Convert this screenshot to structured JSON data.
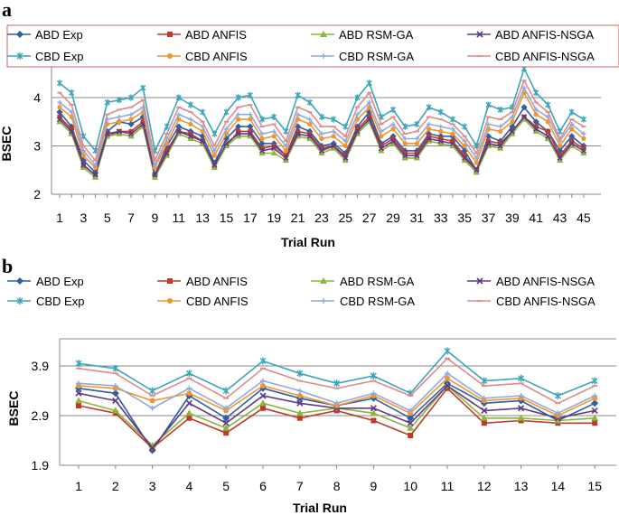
{
  "figure": {
    "panel_a_letter": "a",
    "panel_b_letter": "b"
  },
  "chart_data": [
    {
      "type": "line",
      "panel": "a",
      "xlabel": "Trial Run",
      "ylabel": "BSEC",
      "ylim": [
        2,
        5
      ],
      "yticks": [
        "2",
        "3",
        "4"
      ],
      "xticks": [
        "1",
        "3",
        "5",
        "7",
        "9",
        "11",
        "13",
        "15",
        "17",
        "19",
        "21",
        "23",
        "25",
        "27",
        "29",
        "31",
        "33",
        "35",
        "37",
        "39",
        "41",
        "43",
        "45"
      ],
      "grid": "horizontal",
      "legend": "top, boxed, 4 columns",
      "x": [
        1,
        2,
        3,
        4,
        5,
        6,
        7,
        8,
        9,
        10,
        11,
        12,
        13,
        14,
        15,
        16,
        17,
        18,
        19,
        20,
        21,
        22,
        23,
        24,
        25,
        26,
        27,
        28,
        29,
        30,
        31,
        32,
        33,
        34,
        35,
        36,
        37,
        38,
        39,
        40,
        41,
        42,
        43,
        44,
        45
      ],
      "series": [
        {
          "name": "ABD Exp",
          "color": "#2E5EA8",
          "marker": "diamond",
          "values": [
            3.7,
            3.4,
            2.7,
            2.45,
            3.3,
            3.5,
            3.45,
            3.6,
            2.4,
            3.0,
            3.4,
            3.3,
            3.2,
            2.65,
            3.15,
            3.4,
            3.4,
            3.05,
            3.05,
            2.8,
            3.4,
            3.3,
            3.0,
            3.05,
            2.85,
            3.4,
            3.7,
            3.05,
            3.2,
            2.9,
            2.9,
            3.25,
            3.2,
            3.2,
            2.9,
            2.5,
            3.2,
            3.1,
            3.4,
            3.8,
            3.5,
            3.3,
            2.9,
            3.2,
            3.0
          ]
        },
        {
          "name": "ABD ANFIS",
          "color": "#C0392B",
          "marker": "square",
          "values": [
            3.6,
            3.35,
            2.6,
            2.4,
            3.2,
            3.3,
            3.3,
            3.5,
            2.4,
            2.9,
            3.3,
            3.25,
            3.1,
            2.6,
            3.0,
            3.3,
            3.3,
            2.95,
            3.0,
            2.8,
            3.3,
            3.25,
            2.95,
            3.0,
            2.8,
            3.35,
            3.6,
            3.0,
            3.15,
            2.85,
            2.85,
            3.2,
            3.15,
            3.1,
            2.8,
            2.5,
            3.1,
            3.05,
            3.3,
            3.6,
            3.4,
            3.3,
            2.8,
            3.1,
            2.95
          ]
        },
        {
          "name": "ABD RSM-GA",
          "color": "#8DB53C",
          "marker": "triangle",
          "values": [
            3.5,
            3.25,
            2.55,
            2.35,
            3.2,
            3.25,
            3.2,
            3.4,
            2.35,
            2.8,
            3.25,
            3.15,
            3.05,
            2.55,
            3.0,
            3.2,
            3.2,
            2.85,
            2.85,
            2.7,
            3.2,
            3.15,
            2.85,
            2.95,
            2.7,
            3.25,
            3.5,
            2.9,
            3.05,
            2.75,
            2.75,
            3.1,
            3.05,
            3.0,
            2.7,
            2.45,
            3.0,
            2.95,
            3.25,
            3.55,
            3.3,
            3.15,
            2.7,
            3.0,
            2.85
          ]
        },
        {
          "name": "ABD ANFIS-NSGA",
          "color": "#5E3A87",
          "marker": "x",
          "values": [
            3.55,
            3.3,
            2.6,
            2.4,
            3.25,
            3.3,
            3.25,
            3.45,
            2.4,
            2.85,
            3.3,
            3.2,
            3.1,
            2.6,
            3.05,
            3.25,
            3.25,
            2.9,
            2.95,
            2.75,
            3.25,
            3.2,
            2.9,
            3.0,
            2.75,
            3.3,
            3.55,
            2.95,
            3.1,
            2.8,
            2.8,
            3.15,
            3.1,
            3.05,
            2.75,
            2.5,
            3.05,
            3.0,
            3.3,
            3.6,
            3.35,
            3.2,
            2.75,
            3.05,
            2.9
          ]
        },
        {
          "name": "CBD Exp",
          "color": "#3AA6B9",
          "marker": "star",
          "values": [
            4.3,
            4.1,
            3.2,
            2.9,
            3.9,
            3.95,
            4.0,
            4.2,
            2.9,
            3.4,
            4.0,
            3.85,
            3.7,
            3.25,
            3.7,
            4.0,
            4.05,
            3.55,
            3.6,
            3.3,
            4.05,
            3.9,
            3.6,
            3.55,
            3.4,
            4.0,
            4.3,
            3.6,
            3.75,
            3.4,
            3.45,
            3.8,
            3.7,
            3.55,
            3.4,
            3.0,
            3.85,
            3.75,
            3.8,
            4.6,
            4.1,
            3.85,
            3.3,
            3.7,
            3.55
          ]
        },
        {
          "name": "CBD ANFIS",
          "color": "#F0962E",
          "marker": "circle",
          "values": [
            3.8,
            3.6,
            2.8,
            2.55,
            3.45,
            3.5,
            3.55,
            3.7,
            2.55,
            3.05,
            3.55,
            3.45,
            3.3,
            2.8,
            3.25,
            3.55,
            3.55,
            3.15,
            3.2,
            2.9,
            3.55,
            3.45,
            3.15,
            3.2,
            3.0,
            3.55,
            3.8,
            3.2,
            3.35,
            3.05,
            3.05,
            3.35,
            3.3,
            3.25,
            3.0,
            2.65,
            3.35,
            3.3,
            3.5,
            4.1,
            3.65,
            3.5,
            3.0,
            3.35,
            3.15
          ]
        },
        {
          "name": "CBD RSM-GA",
          "color": "#8FAADC",
          "marker": "plus",
          "values": [
            3.9,
            3.7,
            2.9,
            2.6,
            3.55,
            3.6,
            3.65,
            3.8,
            2.6,
            3.15,
            3.65,
            3.55,
            3.4,
            2.9,
            3.35,
            3.65,
            3.65,
            3.25,
            3.3,
            3.0,
            3.65,
            3.55,
            3.25,
            3.3,
            3.1,
            3.65,
            3.9,
            3.3,
            3.45,
            3.15,
            3.15,
            3.45,
            3.4,
            3.35,
            3.1,
            2.75,
            3.45,
            3.4,
            3.6,
            4.2,
            3.75,
            3.6,
            3.1,
            3.45,
            3.25
          ]
        },
        {
          "name": "CBD ANFIS-NSGA",
          "color": "#E08A8A",
          "marker": "dash",
          "values": [
            4.1,
            3.85,
            3.0,
            2.7,
            3.65,
            3.75,
            3.8,
            3.95,
            2.7,
            3.25,
            3.8,
            3.7,
            3.5,
            3.0,
            3.5,
            3.8,
            3.85,
            3.4,
            3.45,
            3.1,
            3.8,
            3.7,
            3.4,
            3.4,
            3.2,
            3.8,
            4.1,
            3.45,
            3.6,
            3.25,
            3.3,
            3.6,
            3.55,
            3.45,
            3.2,
            2.85,
            3.6,
            3.55,
            3.7,
            4.35,
            3.9,
            3.7,
            3.15,
            3.55,
            3.4
          ]
        }
      ]
    },
    {
      "type": "line",
      "panel": "b",
      "xlabel": "Trial Run",
      "ylabel": "BSEC",
      "ylim": [
        1.9,
        4.4
      ],
      "yticks": [
        "1.9",
        "2.9",
        "3.9"
      ],
      "xticks": [
        "1",
        "2",
        "3",
        "4",
        "5",
        "6",
        "7",
        "8",
        "9",
        "10",
        "11",
        "12",
        "13",
        "14",
        "15"
      ],
      "grid": "horizontal",
      "legend": "top, 4 columns",
      "x": [
        1,
        2,
        3,
        4,
        5,
        6,
        7,
        8,
        9,
        10,
        11,
        12,
        13,
        14,
        15
      ],
      "series": [
        {
          "name": "ABD Exp",
          "color": "#2E5EA8",
          "marker": "diamond",
          "values": [
            3.45,
            3.35,
            2.2,
            3.3,
            2.85,
            3.45,
            3.25,
            3.1,
            3.25,
            2.85,
            3.55,
            3.15,
            3.2,
            2.8,
            3.15
          ]
        },
        {
          "name": "ABD ANFIS",
          "color": "#C0392B",
          "marker": "square",
          "values": [
            3.1,
            2.95,
            2.25,
            2.85,
            2.55,
            3.05,
            2.85,
            3.0,
            2.8,
            2.5,
            3.45,
            2.75,
            2.8,
            2.75,
            2.75
          ]
        },
        {
          "name": "ABD RSM-GA",
          "color": "#8DB53C",
          "marker": "triangle",
          "values": [
            3.2,
            3.0,
            2.3,
            2.95,
            2.65,
            3.15,
            2.95,
            3.05,
            2.95,
            2.65,
            3.5,
            2.85,
            2.85,
            2.8,
            2.85
          ]
        },
        {
          "name": "ABD ANFIS-NSGA",
          "color": "#5E3A87",
          "marker": "x",
          "values": [
            3.35,
            3.2,
            2.25,
            3.15,
            2.75,
            3.3,
            3.15,
            3.05,
            3.05,
            2.75,
            3.5,
            3.0,
            3.05,
            2.85,
            3.0
          ]
        },
        {
          "name": "CBD Exp",
          "color": "#3AA6B9",
          "marker": "star",
          "values": [
            3.95,
            3.85,
            3.4,
            3.75,
            3.4,
            4.0,
            3.75,
            3.55,
            3.7,
            3.35,
            4.2,
            3.6,
            3.65,
            3.3,
            3.6
          ]
        },
        {
          "name": "CBD ANFIS",
          "color": "#F0962E",
          "marker": "circle",
          "values": [
            3.5,
            3.45,
            3.2,
            3.35,
            3.0,
            3.5,
            3.3,
            3.1,
            3.3,
            2.95,
            3.65,
            3.2,
            3.25,
            2.9,
            3.25
          ]
        },
        {
          "name": "CBD RSM-GA",
          "color": "#8FAADC",
          "marker": "plus",
          "values": [
            3.55,
            3.5,
            3.05,
            3.45,
            3.05,
            3.6,
            3.4,
            3.15,
            3.35,
            3.0,
            3.75,
            3.25,
            3.3,
            2.95,
            3.3
          ]
        },
        {
          "name": "CBD ANFIS-NSGA",
          "color": "#E08A8A",
          "marker": "dash",
          "values": [
            3.85,
            3.75,
            3.3,
            3.65,
            3.25,
            3.85,
            3.6,
            3.45,
            3.6,
            3.3,
            4.05,
            3.5,
            3.55,
            3.15,
            3.5
          ]
        }
      ]
    }
  ]
}
